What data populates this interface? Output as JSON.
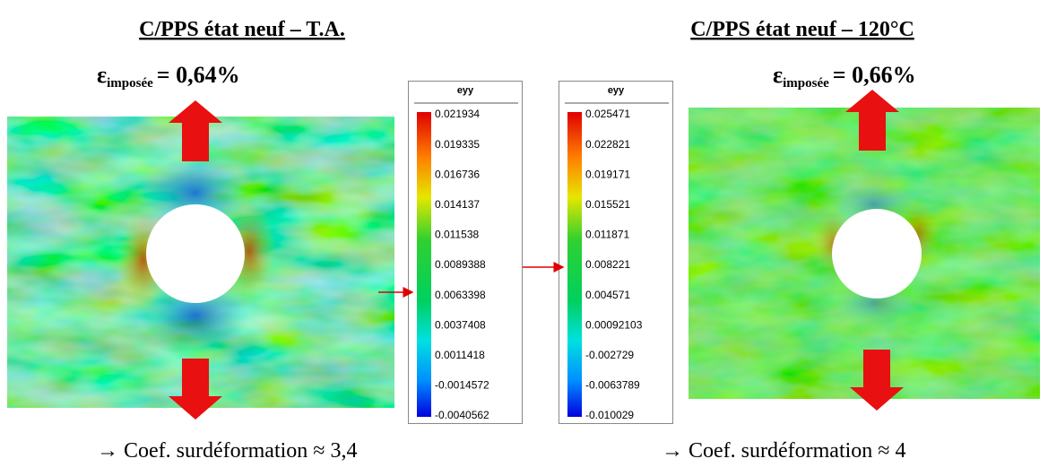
{
  "panels": [
    {
      "title": "C/PPS état neuf – T.A.",
      "strain_symbol": "ε",
      "strain_subscript": "imposée",
      "strain_value": "= 0,64%",
      "colorbar": {
        "label": "eyy",
        "ticks": [
          "0.021934",
          "0.019335",
          "0.016736",
          "0.014137",
          "0.011538",
          "0.0089388",
          "0.0063398",
          "0.0037408",
          "0.0011418",
          "-0.0014572",
          "-0.0040562"
        ]
      },
      "caption": "→ Coef. surdéformation  ≈ 3,4"
    },
    {
      "title": "C/PPS état neuf – 120°C",
      "strain_symbol": "ε",
      "strain_subscript": "imposée",
      "strain_value": "= 0,66%",
      "colorbar": {
        "label": "eyy",
        "ticks": [
          "0.025471",
          "0.022821",
          "0.019171",
          "0.015521",
          "0.011871",
          "0.008221",
          "0.004571",
          "0.00092103",
          "-0.002729",
          "-0.0063789",
          "-0.010029"
        ]
      },
      "caption": "→ Coef. surdéformation  ≈ 4"
    }
  ]
}
